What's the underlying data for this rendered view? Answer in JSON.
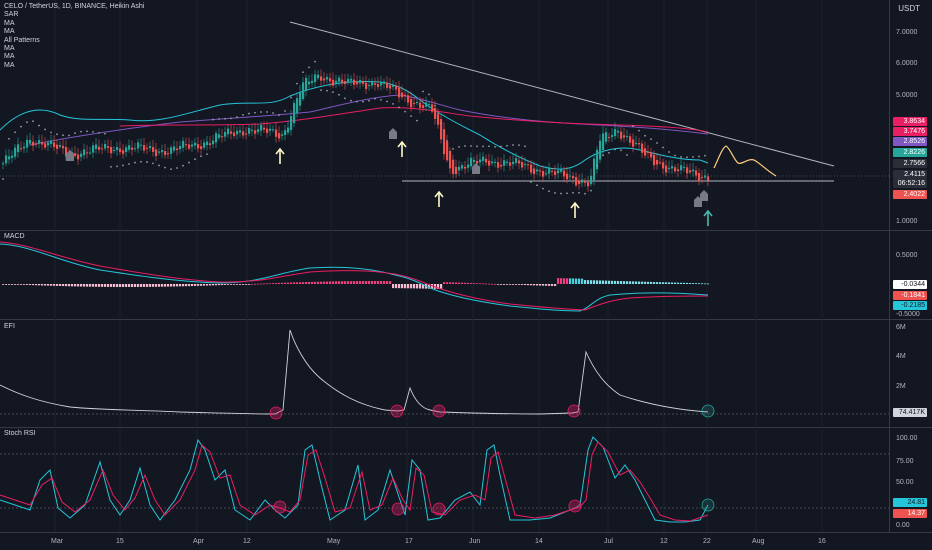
{
  "header": {
    "symbol": "CELO / TetherUS, 1D, BINANCE, Heikin Ashi",
    "indicators": [
      "SAR",
      "MA",
      "MA",
      "All Patterns",
      "MA",
      "MA",
      "MA"
    ],
    "currency": "USDT"
  },
  "panes": {
    "macd_label": "MACD",
    "efi_label": "EFI",
    "stoch_label": "Stoch RSI"
  },
  "colors": {
    "background": "#131722",
    "up": "#26a69a",
    "down": "#ef5350",
    "ma_cyan": "#26c6da",
    "ma_purple": "#7e57c2",
    "ma_pink": "#e91e63",
    "projection": "#ffcc80",
    "grid": "#2a2e39"
  },
  "price_axis": {
    "ticks": [
      "7.0000",
      "6.0000",
      "5.0000",
      "1.0000"
    ],
    "tags": [
      {
        "text": "3.8634",
        "color": "#e91e63"
      },
      {
        "text": "3.7476",
        "color": "#e91e63"
      },
      {
        "text": "2.8526",
        "color": "#7e57c2"
      },
      {
        "text": "2.8226",
        "color": "#26a69a"
      },
      {
        "text": "2.7566",
        "color": "#2a2e39"
      },
      {
        "text": "2.4115",
        "color": "#2a2e39"
      },
      {
        "text": "06:52:16",
        "color": "#2a2e39"
      },
      {
        "text": "2.4022",
        "color": "#ef5350"
      }
    ]
  },
  "macd_axis": {
    "ticks": [
      "0.5000",
      "-0.5000"
    ],
    "tags": [
      {
        "text": "-0.0344",
        "color": "#ffffff",
        "fg": "#131722"
      },
      {
        "text": "-0.1841",
        "color": "#ef5350",
        "fg": "#ffffff"
      },
      {
        "text": "-0.2185",
        "color": "#26c6da",
        "fg": "#131722"
      }
    ]
  },
  "efi_axis": {
    "ticks": [
      "6M",
      "4M",
      "2M"
    ],
    "tags": [
      {
        "text": "74.417K",
        "color": "#d1d4dc",
        "fg": "#131722"
      }
    ]
  },
  "stoch_axis": {
    "ticks": [
      "100.00",
      "75.00",
      "50.00",
      "0.00"
    ],
    "tags": [
      {
        "text": "24.81",
        "color": "#26c6da",
        "fg": "#131722"
      },
      {
        "text": "14.37",
        "color": "#ef5350",
        "fg": "#ffffff"
      }
    ]
  },
  "time_axis": [
    "Mar",
    "15",
    "Apr",
    "12",
    "May",
    "17",
    "Jun",
    "14",
    "Jul",
    "12",
    "22",
    "Aug",
    "16"
  ],
  "chart_data": {
    "type": "line",
    "title": "CELO / TetherUS, 1D, BINANCE, Heikin Ashi",
    "xlabel": "",
    "ylabel": "USDT",
    "series": [
      {
        "name": "",
        "points": [
          [
            0.0,
            2.8
          ],
          [
            0.03,
            3.6
          ],
          [
            0.07,
            3.1
          ],
          [
            0.12,
            3.3
          ],
          [
            0.18,
            3.2
          ],
          [
            0.22,
            3.5
          ],
          [
            0.26,
            3.9
          ],
          [
            0.3,
            3.7
          ],
          [
            0.32,
            5.2
          ],
          [
            0.34,
            5.6
          ],
          [
            0.37,
            5.3
          ],
          [
            0.4,
            5.4
          ],
          [
            0.43,
            4.9
          ],
          [
            0.46,
            4.5
          ],
          [
            0.48,
            2.6
          ],
          [
            0.52,
            2.9
          ],
          [
            0.56,
            2.7
          ],
          [
            0.6,
            2.4
          ],
          [
            0.63,
            2.2
          ],
          [
            0.64,
            3.5
          ],
          [
            0.66,
            3.9
          ],
          [
            0.69,
            3.0
          ],
          [
            0.72,
            2.6
          ],
          [
            0.75,
            2.4
          ],
          [
            0.76,
            2.41
          ]
        ]
      }
    ],
    "annotations": [
      "descending trendline",
      "horizontal support near 2.40",
      "projected path after Jul 22"
    ]
  }
}
